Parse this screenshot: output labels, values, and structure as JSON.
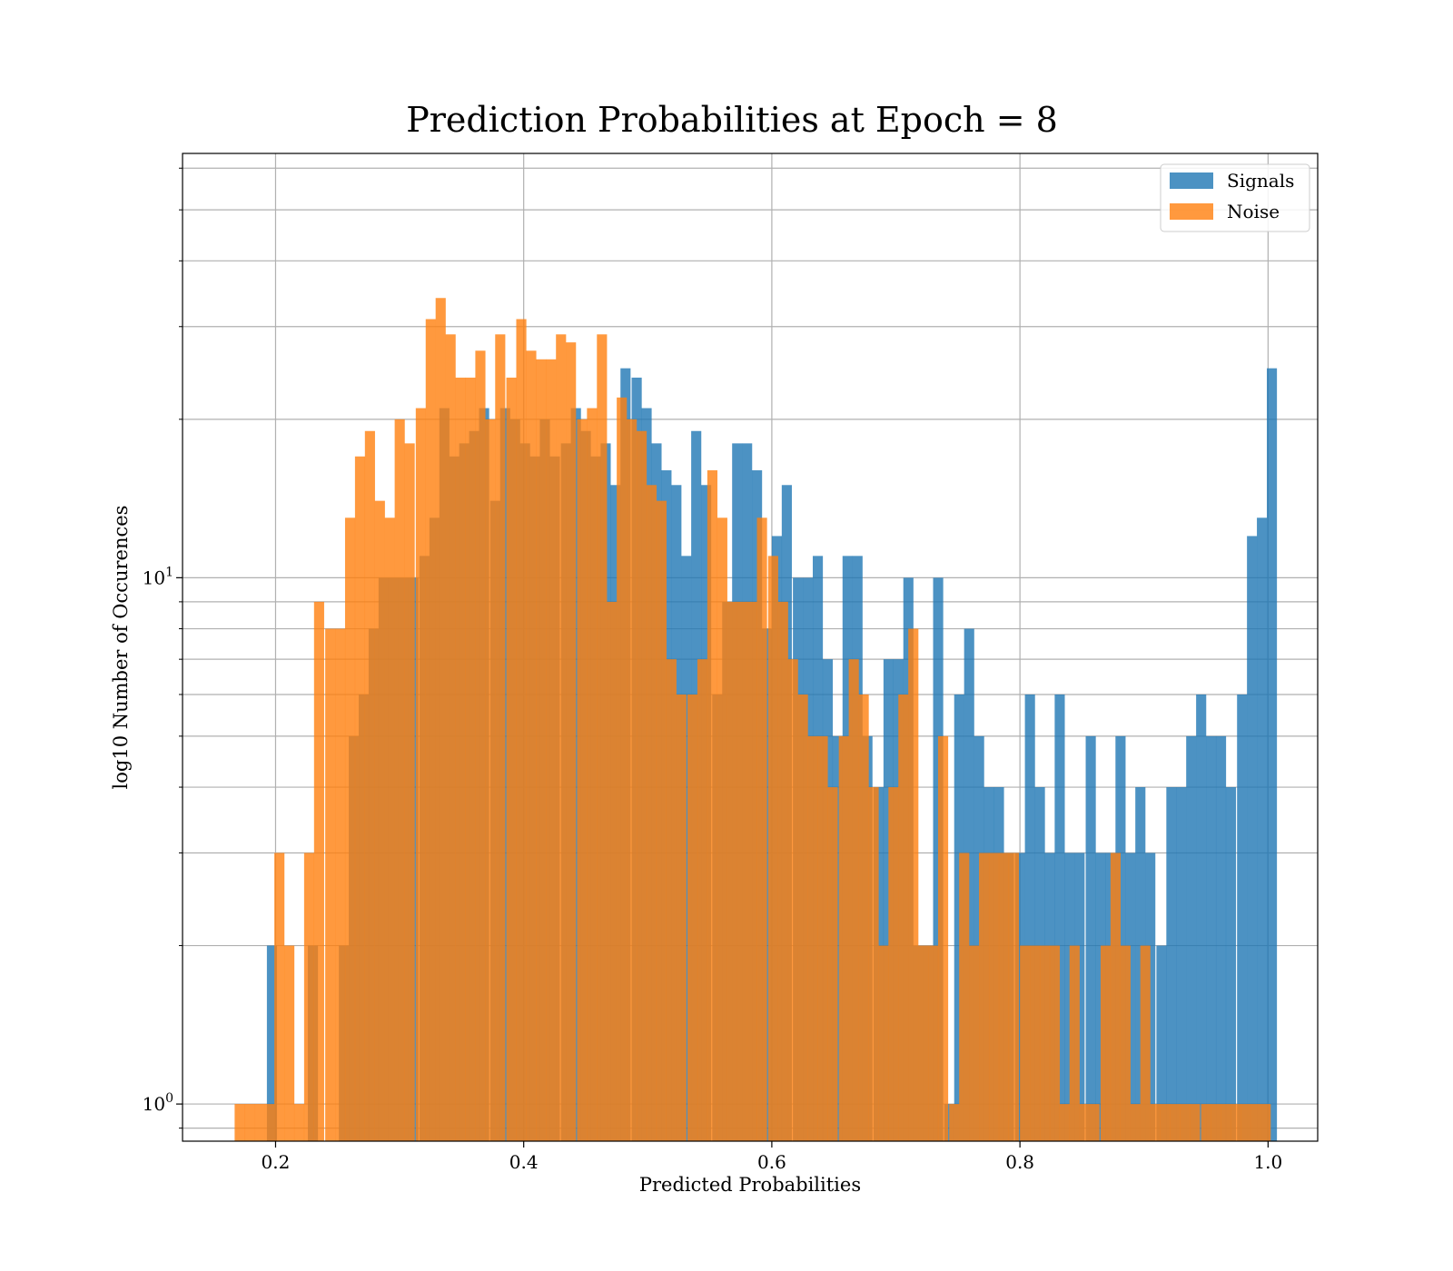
{
  "chart_data": {
    "type": "bar",
    "title": "Prediction Probabilities at Epoch = 8",
    "xlabel": "Predicted Probabilities",
    "ylabel": "log10 Number of Occurences",
    "xlim": [
      0.125,
      1.04
    ],
    "ylim": [
      0.85,
      64
    ],
    "yscale": "log",
    "grid": true,
    "legend_position": "top-right",
    "x_ticks": [
      {
        "value": 0.2,
        "label": "0.2"
      },
      {
        "value": 0.4,
        "label": "0.4"
      },
      {
        "value": 0.6,
        "label": "0.6"
      },
      {
        "value": 0.8,
        "label": "0.8"
      },
      {
        "value": 1.0,
        "label": "1.0"
      }
    ],
    "y_ticks": [
      {
        "value": 1,
        "base": "10",
        "exp": "0"
      },
      {
        "value": 10,
        "base": "10",
        "exp": "1"
      }
    ],
    "series": [
      {
        "name": "Signals",
        "color": "#1f77b4",
        "bin_width": 0.00815,
        "bins": [
          [
            0.193,
            2
          ],
          [
            0.226,
            2
          ],
          [
            0.251,
            2
          ],
          [
            0.259,
            5
          ],
          [
            0.267,
            6
          ],
          [
            0.275,
            8
          ],
          [
            0.283,
            10
          ],
          [
            0.291,
            10
          ],
          [
            0.299,
            10
          ],
          [
            0.307,
            10
          ],
          [
            0.316,
            11
          ],
          [
            0.324,
            13
          ],
          [
            0.332,
            21
          ],
          [
            0.34,
            17
          ],
          [
            0.348,
            18
          ],
          [
            0.356,
            19
          ],
          [
            0.364,
            21
          ],
          [
            0.373,
            14
          ],
          [
            0.381,
            21
          ],
          [
            0.389,
            20
          ],
          [
            0.397,
            18
          ],
          [
            0.405,
            17
          ],
          [
            0.413,
            20
          ],
          [
            0.421,
            17
          ],
          [
            0.43,
            18
          ],
          [
            0.438,
            21
          ],
          [
            0.446,
            19
          ],
          [
            0.454,
            17
          ],
          [
            0.462,
            18
          ],
          [
            0.47,
            15
          ],
          [
            0.478,
            25
          ],
          [
            0.487,
            24
          ],
          [
            0.495,
            21
          ],
          [
            0.503,
            18
          ],
          [
            0.511,
            16
          ],
          [
            0.519,
            15
          ],
          [
            0.527,
            11
          ],
          [
            0.535,
            19
          ],
          [
            0.543,
            15
          ],
          [
            0.552,
            6
          ],
          [
            0.56,
            9
          ],
          [
            0.568,
            18
          ],
          [
            0.576,
            18
          ],
          [
            0.584,
            16
          ],
          [
            0.592,
            8
          ],
          [
            0.6,
            12
          ],
          [
            0.608,
            15
          ],
          [
            0.617,
            10
          ],
          [
            0.625,
            10
          ],
          [
            0.633,
            11
          ],
          [
            0.641,
            7
          ],
          [
            0.649,
            5
          ],
          [
            0.657,
            11
          ],
          [
            0.665,
            11
          ],
          [
            0.673,
            5
          ],
          [
            0.682,
            4
          ],
          [
            0.69,
            7
          ],
          [
            0.698,
            7
          ],
          [
            0.706,
            10
          ],
          [
            0.714,
            2
          ],
          [
            0.722,
            2
          ],
          [
            0.73,
            10
          ],
          [
            0.739,
            1
          ],
          [
            0.747,
            6
          ],
          [
            0.755,
            8
          ],
          [
            0.763,
            5
          ],
          [
            0.771,
            4
          ],
          [
            0.779,
            4
          ],
          [
            0.787,
            3
          ],
          [
            0.796,
            3
          ],
          [
            0.804,
            6
          ],
          [
            0.812,
            4
          ],
          [
            0.82,
            3
          ],
          [
            0.828,
            6
          ],
          [
            0.836,
            3
          ],
          [
            0.844,
            3
          ],
          [
            0.853,
            5
          ],
          [
            0.861,
            3
          ],
          [
            0.869,
            3
          ],
          [
            0.877,
            5
          ],
          [
            0.885,
            3
          ],
          [
            0.893,
            4
          ],
          [
            0.901,
            3
          ],
          [
            0.91,
            2
          ],
          [
            0.918,
            4
          ],
          [
            0.926,
            4
          ],
          [
            0.934,
            5
          ],
          [
            0.942,
            6
          ],
          [
            0.95,
            5
          ],
          [
            0.958,
            5
          ],
          [
            0.966,
            4
          ],
          [
            0.975,
            6
          ],
          [
            0.983,
            12
          ],
          [
            0.991,
            13
          ],
          [
            0.999,
            25
          ]
        ]
      },
      {
        "name": "Noise",
        "color": "#ff7f0e",
        "bin_width": 0.00815,
        "bins": [
          [
            0.167,
            1
          ],
          [
            0.175,
            1
          ],
          [
            0.183,
            1
          ],
          [
            0.191,
            1
          ],
          [
            0.199,
            3
          ],
          [
            0.207,
            2
          ],
          [
            0.215,
            1
          ],
          [
            0.223,
            3
          ],
          [
            0.231,
            9
          ],
          [
            0.24,
            8
          ],
          [
            0.248,
            8
          ],
          [
            0.256,
            13
          ],
          [
            0.264,
            17
          ],
          [
            0.272,
            19
          ],
          [
            0.28,
            14
          ],
          [
            0.288,
            13
          ],
          [
            0.296,
            20
          ],
          [
            0.304,
            18
          ],
          [
            0.313,
            21
          ],
          [
            0.321,
            31
          ],
          [
            0.329,
            34
          ],
          [
            0.337,
            29
          ],
          [
            0.345,
            24
          ],
          [
            0.353,
            24
          ],
          [
            0.361,
            27
          ],
          [
            0.369,
            20
          ],
          [
            0.377,
            29
          ],
          [
            0.386,
            24
          ],
          [
            0.394,
            31
          ],
          [
            0.402,
            27
          ],
          [
            0.41,
            26
          ],
          [
            0.418,
            26
          ],
          [
            0.426,
            29
          ],
          [
            0.434,
            28
          ],
          [
            0.443,
            20
          ],
          [
            0.451,
            21
          ],
          [
            0.459,
            29
          ],
          [
            0.467,
            9
          ],
          [
            0.475,
            22
          ],
          [
            0.483,
            20
          ],
          [
            0.491,
            19
          ],
          [
            0.499,
            15
          ],
          [
            0.507,
            14
          ],
          [
            0.515,
            7
          ],
          [
            0.523,
            6
          ],
          [
            0.532,
            6
          ],
          [
            0.54,
            7
          ],
          [
            0.548,
            16
          ],
          [
            0.556,
            13
          ],
          [
            0.564,
            9
          ],
          [
            0.572,
            9
          ],
          [
            0.58,
            9
          ],
          [
            0.588,
            13
          ],
          [
            0.597,
            11
          ],
          [
            0.605,
            9
          ],
          [
            0.613,
            7
          ],
          [
            0.621,
            6
          ],
          [
            0.629,
            5
          ],
          [
            0.637,
            5
          ],
          [
            0.645,
            4
          ],
          [
            0.654,
            5
          ],
          [
            0.662,
            7
          ],
          [
            0.67,
            6
          ],
          [
            0.678,
            4
          ],
          [
            0.686,
            2
          ],
          [
            0.694,
            4
          ],
          [
            0.702,
            6
          ],
          [
            0.71,
            8
          ],
          [
            0.718,
            2
          ],
          [
            0.726,
            2
          ],
          [
            0.734,
            5
          ],
          [
            0.743,
            1
          ],
          [
            0.751,
            3
          ],
          [
            0.759,
            2
          ],
          [
            0.767,
            3
          ],
          [
            0.775,
            3
          ],
          [
            0.783,
            3
          ],
          [
            0.791,
            3
          ],
          [
            0.8,
            2
          ],
          [
            0.808,
            2
          ],
          [
            0.816,
            2
          ],
          [
            0.824,
            2
          ],
          [
            0.832,
            1
          ],
          [
            0.84,
            2
          ],
          [
            0.848,
            1
          ],
          [
            0.856,
            1
          ],
          [
            0.865,
            2
          ],
          [
            0.873,
            3
          ],
          [
            0.881,
            2
          ],
          [
            0.889,
            1
          ],
          [
            0.897,
            2
          ],
          [
            0.905,
            1
          ],
          [
            0.913,
            1
          ],
          [
            0.921,
            1
          ],
          [
            0.929,
            1
          ],
          [
            0.937,
            1
          ],
          [
            0.946,
            1
          ],
          [
            0.954,
            1
          ],
          [
            0.962,
            1
          ],
          [
            0.97,
            1
          ],
          [
            0.978,
            1
          ],
          [
            0.986,
            1
          ],
          [
            0.994,
            1
          ]
        ]
      }
    ]
  }
}
